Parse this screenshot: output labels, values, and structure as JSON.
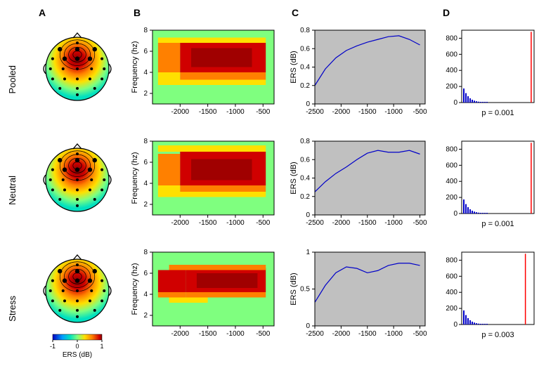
{
  "columns": [
    "A",
    "B",
    "C",
    "D"
  ],
  "rows": [
    "Pooled",
    "Neutral",
    "Stress"
  ],
  "colormap": {
    "stops": [
      {
        "v": -1.0,
        "c": "#0000c0"
      },
      {
        "v": -0.6,
        "c": "#00a0ff"
      },
      {
        "v": -0.3,
        "c": "#00e0c0"
      },
      {
        "v": 0.0,
        "c": "#7fff7f"
      },
      {
        "v": 0.3,
        "c": "#ffe000"
      },
      {
        "v": 0.6,
        "c": "#ff8000"
      },
      {
        "v": 0.9,
        "c": "#d00000"
      },
      {
        "v": 1.0,
        "c": "#800000"
      }
    ],
    "range": [
      -1,
      1
    ],
    "ticks": [
      -1,
      0,
      1
    ],
    "label": "ERS (dB)"
  },
  "topomap": {
    "electrodes": [
      [
        0.0,
        -0.82
      ],
      [
        -0.55,
        -0.62
      ],
      [
        0.0,
        -0.62
      ],
      [
        0.55,
        -0.62
      ],
      [
        -0.78,
        -0.32
      ],
      [
        -0.4,
        -0.32
      ],
      [
        0.0,
        -0.32
      ],
      [
        0.4,
        -0.32
      ],
      [
        0.78,
        -0.32
      ],
      [
        -0.85,
        0.0
      ],
      [
        -0.45,
        0.0
      ],
      [
        0.0,
        0.0
      ],
      [
        0.45,
        0.0
      ],
      [
        0.85,
        0.0
      ],
      [
        -0.78,
        0.32
      ],
      [
        -0.4,
        0.32
      ],
      [
        0.0,
        0.32
      ],
      [
        0.4,
        0.32
      ],
      [
        0.78,
        0.32
      ],
      [
        -0.55,
        0.62
      ],
      [
        0.0,
        0.62
      ],
      [
        0.55,
        0.62
      ],
      [
        0.0,
        0.82
      ]
    ],
    "highlighted": [
      1,
      2,
      3,
      5,
      6,
      7
    ],
    "hotspot_center": [
      0.0,
      -0.45
    ],
    "hotspot_radius": 0.55
  },
  "panelB": {
    "ylabel": "Frequency (hz)",
    "xlim": [
      -2500,
      -300
    ],
    "ylim": [
      1,
      8
    ],
    "xticks": [
      -2000,
      -1500,
      -1000,
      -500
    ],
    "yticks": [
      2,
      4,
      6,
      8
    ],
    "tick_fontsize": 10,
    "label_fontsize": 11,
    "background": "#7fff7f"
  },
  "panelC": {
    "ylabel": "ERS (dB)",
    "xlim": [
      -2500,
      -400
    ],
    "xticks": [
      -2500,
      -2000,
      -1500,
      -1000,
      -500
    ],
    "tick_fontsize": 10,
    "label_fontsize": 11,
    "line_color": "#0000c8",
    "line_width": 1.2,
    "dash_color": "#000000",
    "background": "#c0c0c0"
  },
  "panelD": {
    "ylim": [
      0,
      900
    ],
    "yticks": [
      0,
      200,
      400,
      600,
      800
    ],
    "bar_color": "#ff0000",
    "hist_color": "#0000c8",
    "tick_fontsize": 10,
    "background": "#ffffff"
  },
  "data_rows": [
    {
      "id": "pooled",
      "C_ylim": [
        0,
        0.8
      ],
      "C_yticks": [
        0,
        0.2,
        0.4,
        0.6,
        0.8
      ],
      "C_curve": [
        [
          -2500,
          0.2
        ],
        [
          -2300,
          0.38
        ],
        [
          -2100,
          0.5
        ],
        [
          -1900,
          0.58
        ],
        [
          -1700,
          0.63
        ],
        [
          -1500,
          0.67
        ],
        [
          -1300,
          0.7
        ],
        [
          -1100,
          0.73
        ],
        [
          -900,
          0.74
        ],
        [
          -700,
          0.7
        ],
        [
          -500,
          0.64
        ]
      ],
      "D_obs_pos": 0.96,
      "D_p": "p = 0.001",
      "heat_rects": [
        {
          "x0": -2400,
          "x1": -2000,
          "y0": 4.0,
          "y1": 6.8,
          "c": "#ff8000"
        },
        {
          "x0": -2400,
          "x1": -2000,
          "y0": 3.3,
          "y1": 4.0,
          "c": "#ffe000"
        },
        {
          "x0": -2000,
          "x1": -450,
          "y0": 3.3,
          "y1": 4.0,
          "c": "#ff8000"
        },
        {
          "x0": -2000,
          "x1": -450,
          "y0": 4.0,
          "y1": 6.8,
          "c": "#d00000"
        },
        {
          "x0": -1800,
          "x1": -700,
          "y0": 4.5,
          "y1": 6.3,
          "c": "#a00000"
        },
        {
          "x0": -2400,
          "x1": -450,
          "y0": 6.8,
          "y1": 7.3,
          "c": "#ffe000"
        },
        {
          "x0": -2400,
          "x1": -450,
          "y0": 2.8,
          "y1": 3.3,
          "c": "#ffe000"
        }
      ]
    },
    {
      "id": "neutral",
      "C_ylim": [
        0,
        0.8
      ],
      "C_yticks": [
        0,
        0.2,
        0.4,
        0.6,
        0.8
      ],
      "C_curve": [
        [
          -2500,
          0.25
        ],
        [
          -2300,
          0.36
        ],
        [
          -2100,
          0.45
        ],
        [
          -1900,
          0.52
        ],
        [
          -1700,
          0.6
        ],
        [
          -1500,
          0.67
        ],
        [
          -1300,
          0.7
        ],
        [
          -1100,
          0.68
        ],
        [
          -900,
          0.68
        ],
        [
          -700,
          0.7
        ],
        [
          -500,
          0.66
        ]
      ],
      "D_obs_pos": 0.96,
      "D_p": "p = 0.001",
      "heat_rects": [
        {
          "x0": -2400,
          "x1": -2000,
          "y0": 3.8,
          "y1": 6.8,
          "c": "#ff8000"
        },
        {
          "x0": -2400,
          "x1": -2000,
          "y0": 3.2,
          "y1": 3.8,
          "c": "#ffe000"
        },
        {
          "x0": -2000,
          "x1": -450,
          "y0": 3.2,
          "y1": 3.8,
          "c": "#ff8000"
        },
        {
          "x0": -2000,
          "x1": -450,
          "y0": 3.8,
          "y1": 7.0,
          "c": "#d00000"
        },
        {
          "x0": -1800,
          "x1": -700,
          "y0": 4.3,
          "y1": 6.3,
          "c": "#a00000"
        },
        {
          "x0": -2400,
          "x1": -450,
          "y0": 7.0,
          "y1": 7.6,
          "c": "#ffe000"
        },
        {
          "x0": -2400,
          "x1": -450,
          "y0": 2.7,
          "y1": 3.2,
          "c": "#ffe000"
        }
      ]
    },
    {
      "id": "stress",
      "C_ylim": [
        0,
        1.0
      ],
      "C_yticks": [
        0,
        0.5,
        1
      ],
      "C_curve": [
        [
          -2500,
          0.32
        ],
        [
          -2300,
          0.55
        ],
        [
          -2100,
          0.72
        ],
        [
          -1900,
          0.8
        ],
        [
          -1700,
          0.78
        ],
        [
          -1500,
          0.72
        ],
        [
          -1300,
          0.75
        ],
        [
          -1100,
          0.82
        ],
        [
          -900,
          0.85
        ],
        [
          -700,
          0.85
        ],
        [
          -500,
          0.82
        ]
      ],
      "D_obs_pos": 0.88,
      "D_p": "p = 0.003",
      "heat_rects": [
        {
          "x0": -2400,
          "x1": -1900,
          "y0": 4.2,
          "y1": 6.3,
          "c": "#d00000"
        },
        {
          "x0": -2400,
          "x1": -1900,
          "y0": 3.7,
          "y1": 4.2,
          "c": "#ff8000"
        },
        {
          "x0": -1900,
          "x1": -450,
          "y0": 3.7,
          "y1": 4.2,
          "c": "#ff8000"
        },
        {
          "x0": -1900,
          "x1": -450,
          "y0": 4.2,
          "y1": 6.5,
          "c": "#d00000"
        },
        {
          "x0": -1700,
          "x1": -600,
          "y0": 4.6,
          "y1": 6.0,
          "c": "#a00000"
        },
        {
          "x0": -2200,
          "x1": -450,
          "y0": 6.3,
          "y1": 6.8,
          "c": "#ff8000"
        },
        {
          "x0": -2200,
          "x1": -1500,
          "y0": 3.2,
          "y1": 3.7,
          "c": "#ffe000"
        }
      ]
    }
  ]
}
